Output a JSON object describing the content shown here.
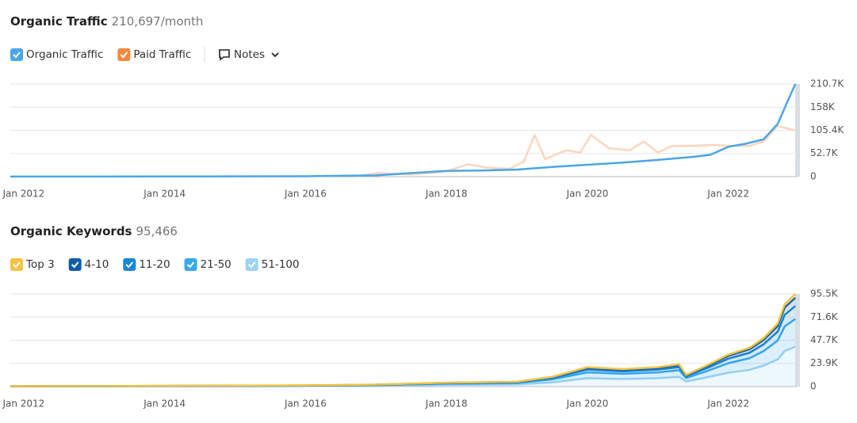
{
  "chart_data": [
    {
      "type": "line",
      "title": "Organic Traffic",
      "subtitle": "210,697/month",
      "xlim": [
        2011.81,
        2022.97
      ],
      "xticks": [
        {
          "value": 2012,
          "label": "Jan 2012"
        },
        {
          "value": 2014,
          "label": "Jan 2014"
        },
        {
          "value": 2016,
          "label": "Jan 2016"
        },
        {
          "value": 2018,
          "label": "Jan 2018"
        },
        {
          "value": 2020,
          "label": "Jan 2020"
        },
        {
          "value": 2022,
          "label": "Jan 2022"
        }
      ],
      "ylim": [
        0,
        210700
      ],
      "yticks": [
        0,
        {
          "value": 52700,
          "label": "52.7K"
        },
        {
          "value": 105400,
          "label": "105.4K"
        },
        {
          "value": 158000,
          "label": "158K"
        },
        {
          "value": 210700,
          "label": "210.7K"
        }
      ],
      "grid": true,
      "series": [
        {
          "name": "Organic Traffic",
          "color": "#4ba6e8",
          "x": [
            2011.81,
            2013,
            2014,
            2015,
            2016,
            2016.5,
            2017,
            2017.5,
            2018,
            2018.5,
            2019,
            2019.5,
            2020,
            2020.5,
            2021,
            2021.5,
            2021.75,
            2022,
            2022.25,
            2022.5,
            2022.7,
            2022.85,
            2022.95
          ],
          "values": [
            200,
            300,
            400,
            600,
            1000,
            2000,
            3000,
            8000,
            13000,
            14000,
            16000,
            22000,
            27000,
            32000,
            38000,
            45000,
            50000,
            68000,
            75000,
            85000,
            120000,
            175000,
            210697
          ]
        },
        {
          "name": "Paid Traffic",
          "color": "#ffd5bd",
          "legend_color": "#f5883b",
          "x": [
            2016.7,
            2017,
            2017.5,
            2018,
            2018.3,
            2018.6,
            2018.9,
            2019.1,
            2019.25,
            2019.4,
            2019.7,
            2019.9,
            2020.05,
            2020.3,
            2020.6,
            2020.8,
            2021,
            2021.2,
            2021.5,
            2021.8,
            2022,
            2022.3,
            2022.5,
            2022.7,
            2022.95
          ],
          "values": [
            0,
            8000,
            5000,
            12000,
            28000,
            20000,
            18000,
            35000,
            95000,
            40000,
            60000,
            55000,
            95000,
            65000,
            60000,
            80000,
            55000,
            70000,
            70000,
            72000,
            70000,
            70000,
            80000,
            115000,
            105000
          ]
        }
      ]
    },
    {
      "type": "stacked-area",
      "title": "Organic Keywords",
      "subtitle": "95,466",
      "xlim": [
        2011.81,
        2022.97
      ],
      "xticks": [
        {
          "value": 2012,
          "label": "Jan 2012"
        },
        {
          "value": 2014,
          "label": "Jan 2014"
        },
        {
          "value": 2016,
          "label": "Jan 2016"
        },
        {
          "value": 2018,
          "label": "Jan 2018"
        },
        {
          "value": 2020,
          "label": "Jan 2020"
        },
        {
          "value": 2022,
          "label": "Jan 2022"
        }
      ],
      "ylim": [
        0,
        95500
      ],
      "yticks": [
        0,
        {
          "value": 23900,
          "label": "23.9K"
        },
        {
          "value": 47700,
          "label": "47.7K"
        },
        {
          "value": 71600,
          "label": "71.6K"
        },
        {
          "value": 95500,
          "label": "95.5K"
        }
      ],
      "grid": true,
      "x": [
        2011.81,
        2013,
        2014,
        2015,
        2016,
        2017,
        2018,
        2019,
        2019.5,
        2020,
        2020.5,
        2021,
        2021.3,
        2021.4,
        2021.7,
        2022,
        2022.3,
        2022.5,
        2022.7,
        2022.8,
        2022.95
      ],
      "series": [
        {
          "name": "Top 3",
          "color": "#f5c342",
          "values": [
            11,
            20,
            29,
            33,
            49,
            80,
            160,
            200,
            400,
            800,
            720,
            800,
            920,
            480,
            880,
            1320,
            1600,
            2000,
            2600,
            3400,
            3871
          ]
        },
        {
          "name": "4-10",
          "color": "#0d5ea6",
          "values": [
            27,
            45,
            63,
            81,
            108,
            180,
            360,
            450,
            900,
            1800,
            1620,
            1800,
            2070,
            1080,
            1980,
            2970,
            3600,
            4500,
            5850,
            7650,
            8590
          ]
        },
        {
          "name": "11-20",
          "color": "#1a86d8",
          "values": [
            42,
            70,
            98,
            126,
            168,
            280,
            560,
            700,
            1400,
            2800,
            2520,
            2800,
            3220,
            1680,
            3080,
            4620,
            5600,
            7000,
            9100,
            11900,
            13365
          ]
        },
        {
          "name": "21-50",
          "color": "#36a9ee",
          "values": [
            90,
            150,
            210,
            270,
            360,
            600,
            1200,
            1500,
            3000,
            6000,
            5400,
            6000,
            6900,
            3600,
            6600,
            9900,
            12000,
            15000,
            19500,
            25500,
            28640
          ]
        },
        {
          "name": "51-100",
          "color": "#9dd2f7",
          "values": [
            130,
            215,
            300,
            390,
            515,
            860,
            1720,
            2150,
            4300,
            8600,
            7740,
            8600,
            9890,
            5160,
            9460,
            14190,
            17200,
            21500,
            27950,
            36550,
            41000
          ]
        }
      ]
    }
  ],
  "notes_label": "Notes"
}
